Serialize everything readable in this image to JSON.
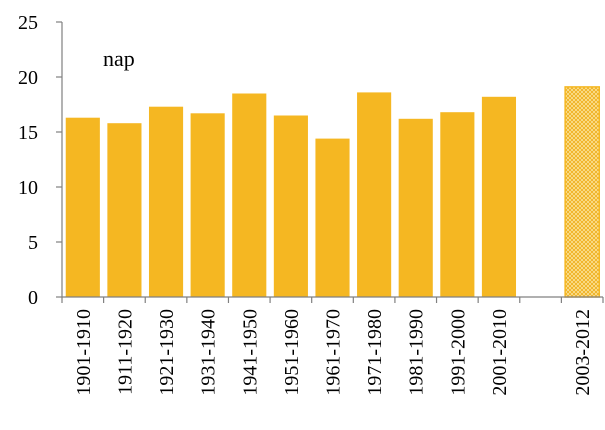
{
  "chart_data": {
    "type": "bar",
    "unit_label": "nap",
    "categories": [
      "1901-1910",
      "1911-1920",
      "1921-1930",
      "1931-1940",
      "1941-1950",
      "1951-1960",
      "1961-1970",
      "1971-1980",
      "1981-1990",
      "1991-2000",
      "2001-2010",
      "",
      "2003-2012"
    ],
    "values": [
      16.3,
      15.8,
      17.3,
      16.7,
      18.5,
      16.5,
      14.4,
      18.6,
      16.2,
      16.8,
      18.2,
      null,
      19.1
    ],
    "patterned": [
      false,
      false,
      false,
      false,
      false,
      false,
      false,
      false,
      false,
      false,
      false,
      false,
      true
    ],
    "ylim": [
      0,
      25
    ],
    "yticks": [
      0,
      5,
      10,
      15,
      20,
      25
    ],
    "bar_color": "#F5B722",
    "pattern_bg": "#FCE39A",
    "pattern_line": "#EFAE1A",
    "grid": false
  }
}
